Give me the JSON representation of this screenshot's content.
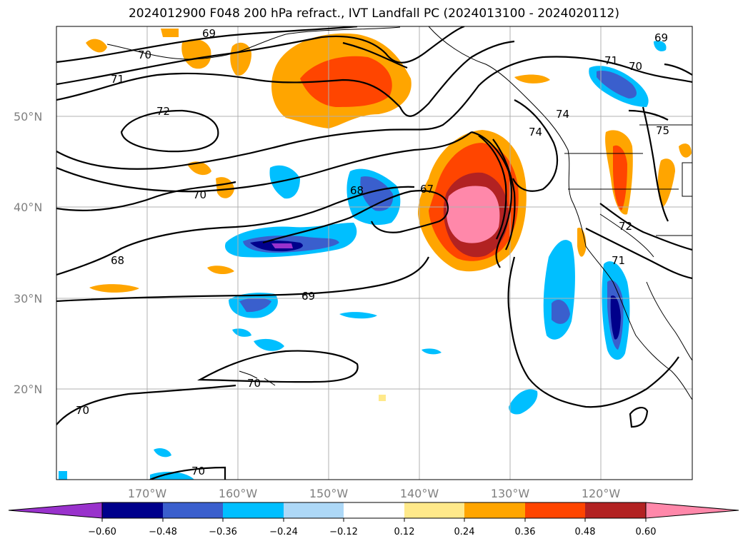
{
  "title": "2024012900 F048 200 hPa refract., IVT Landfall PC (2024013100 - 2024020112)",
  "map": {
    "lat_labels": [
      "50°N",
      "40°N",
      "30°N",
      "20°N"
    ],
    "lon_labels": [
      "170°W",
      "160°W",
      "150°W",
      "140°W",
      "130°W",
      "120°W"
    ],
    "contour_labels": [
      "69",
      "70",
      "71",
      "72",
      "70",
      "68",
      "69",
      "70",
      "70",
      "70",
      "68",
      "67",
      "74",
      "74",
      "71",
      "70",
      "69",
      "75",
      "72",
      "71"
    ]
  },
  "colorbar": {
    "tick_labels": [
      "−0.60",
      "−0.48",
      "−0.36",
      "−0.24",
      "−0.12",
      "0.12",
      "0.24",
      "0.36",
      "0.48",
      "0.60"
    ],
    "colors": [
      "#9932cc",
      "#00008b",
      "#3a5fcd",
      "#00bfff",
      "#add8f7",
      "#ffffff",
      "#ffe98a",
      "#ffa500",
      "#ff4500",
      "#b22222",
      "#ff88aa"
    ]
  }
}
